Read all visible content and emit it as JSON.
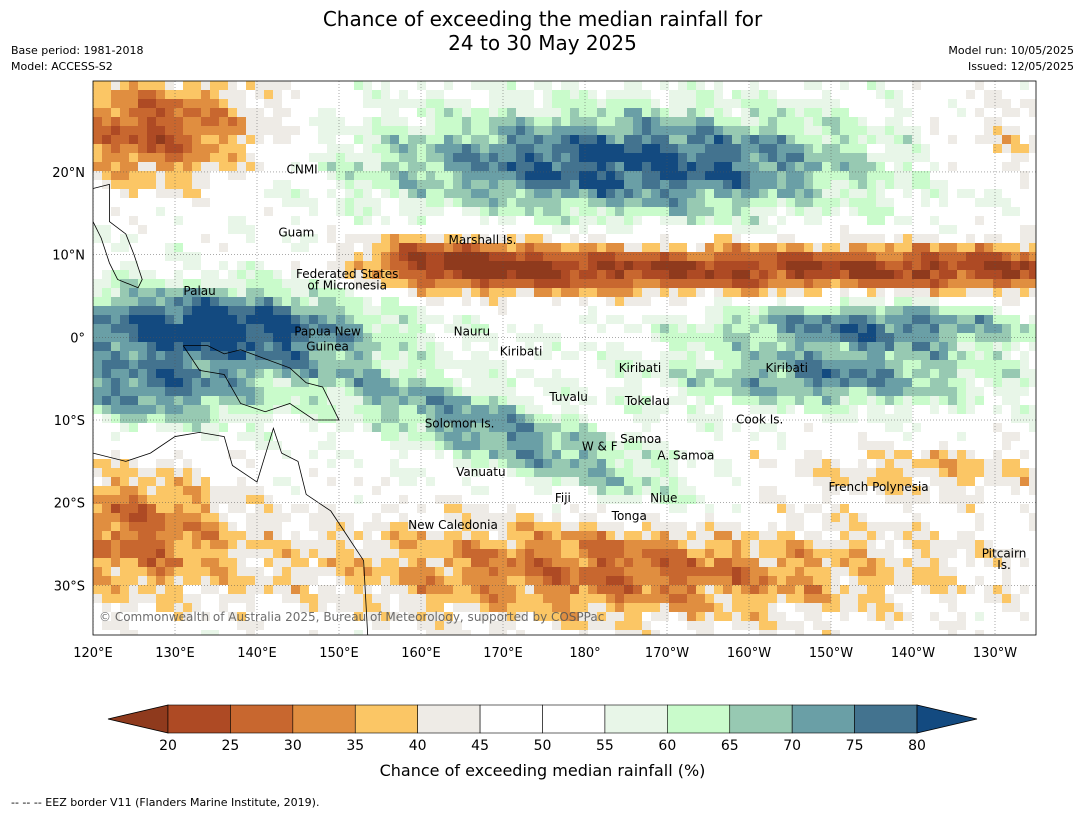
{
  "title": {
    "line1": "Chance of exceeding the median rainfall for",
    "line2": "24 to 30 May 2025"
  },
  "meta_left": {
    "base_period": "Base period: 1981-2018",
    "model": "Model: ACCESS-S2"
  },
  "meta_right": {
    "model_run": "Model run: 10/05/2025",
    "issued": "Issued: 12/05/2025"
  },
  "copyright": "© Commonwealth of Australia 2025, Bureau of Meteorology, supported by COSPPac",
  "map": {
    "lon_range": [
      120,
      235
    ],
    "lat_range": [
      -36,
      31
    ],
    "lon_ticks": [
      {
        "lon": 120,
        "label": "120°E"
      },
      {
        "lon": 130,
        "label": "130°E"
      },
      {
        "lon": 140,
        "label": "140°E"
      },
      {
        "lon": 150,
        "label": "150°E"
      },
      {
        "lon": 160,
        "label": "160°E"
      },
      {
        "lon": 170,
        "label": "170°E"
      },
      {
        "lon": 180,
        "label": "180°"
      },
      {
        "lon": 190,
        "label": "170°W"
      },
      {
        "lon": 200,
        "label": "160°W"
      },
      {
        "lon": 210,
        "label": "150°W"
      },
      {
        "lon": 220,
        "label": "140°W"
      },
      {
        "lon": 230,
        "label": "130°W"
      }
    ],
    "lat_ticks": [
      {
        "lat": 20,
        "label": "20°N"
      },
      {
        "lat": 10,
        "label": "10°N"
      },
      {
        "lat": 0,
        "label": "0°"
      },
      {
        "lat": -10,
        "label": "10°S"
      },
      {
        "lat": -20,
        "label": "20°S"
      },
      {
        "lat": -30,
        "label": "30°S"
      }
    ],
    "region_labels": [
      {
        "text": "CNMI",
        "lon": 145.5,
        "lat": 19.8
      },
      {
        "text": "Guam",
        "lon": 144.8,
        "lat": 12.2
      },
      {
        "text": "Marshall Is.",
        "lon": 167.5,
        "lat": 11.3
      },
      {
        "text": "Federated States",
        "lon": 151,
        "lat": 7.2
      },
      {
        "text": "of Micronesia",
        "lon": 151,
        "lat": 5.8
      },
      {
        "text": "Palau",
        "lon": 133,
        "lat": 5.1
      },
      {
        "text": "Nauru",
        "lon": 166.2,
        "lat": 0.2
      },
      {
        "text": "Papua New",
        "lon": 148.6,
        "lat": 0.2
      },
      {
        "text": "Guinea",
        "lon": 148.6,
        "lat": -1.6
      },
      {
        "text": "Kiribati",
        "lon": 172.2,
        "lat": -2.2
      },
      {
        "text": "Kiribati",
        "lon": 186.7,
        "lat": -4.2
      },
      {
        "text": "Kiribati",
        "lon": 204.6,
        "lat": -4.2
      },
      {
        "text": "Tuvalu",
        "lon": 178,
        "lat": -7.7
      },
      {
        "text": "Tokelau",
        "lon": 187.6,
        "lat": -8.2
      },
      {
        "text": "Solomon Is.",
        "lon": 164.7,
        "lat": -10.9
      },
      {
        "text": "Cook Is.",
        "lon": 201.3,
        "lat": -10.4
      },
      {
        "text": "Samoa",
        "lon": 186.8,
        "lat": -12.8
      },
      {
        "text": "W & F",
        "lon": 181.8,
        "lat": -13.7
      },
      {
        "text": "A. Samoa",
        "lon": 192.3,
        "lat": -14.8
      },
      {
        "text": "Vanuatu",
        "lon": 167.3,
        "lat": -16.8
      },
      {
        "text": "French Polynesia",
        "lon": 215.8,
        "lat": -18.6
      },
      {
        "text": "Fiji",
        "lon": 177.3,
        "lat": -19.9
      },
      {
        "text": "Niue",
        "lon": 189.6,
        "lat": -19.9
      },
      {
        "text": "Tonga",
        "lon": 185.4,
        "lat": -22.1
      },
      {
        "text": "New Caledonia",
        "lon": 163.9,
        "lat": -23.2
      },
      {
        "text": "Pitcairn",
        "lon": 231.1,
        "lat": -26.6
      },
      {
        "text": "Is.",
        "lon": 231.1,
        "lat": -28.0
      }
    ]
  },
  "colorbar": {
    "title": "Chance of exceeding median rainfall (%)",
    "bins": [
      20,
      25,
      30,
      35,
      40,
      45,
      50,
      55,
      60,
      65,
      70,
      75,
      80
    ],
    "colors": [
      "#8f3a1d",
      "#ae4a24",
      "#c8672f",
      "#e08e40",
      "#fbc665",
      "#eeebe6",
      "#ffffff",
      "#ffffff",
      "#e8f6e8",
      "#c9fbcb",
      "#97c9b2",
      "#6a9fa6",
      "#43738f",
      "#134a80"
    ]
  },
  "footnote": "--  --  -- EEZ border V11 (Flanders Marine Institute, 2019)."
}
